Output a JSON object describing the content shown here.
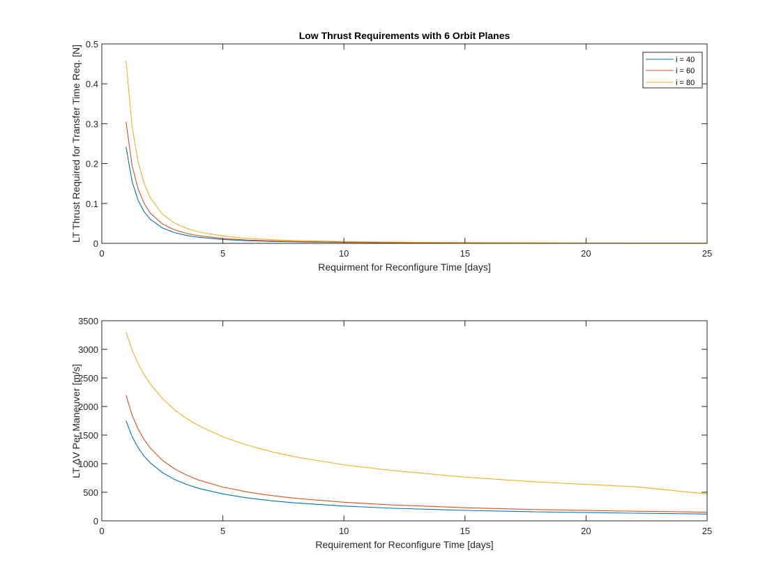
{
  "chart_data": [
    {
      "type": "line",
      "title": "Low Thrust Requirements with 6 Orbit Planes",
      "xlabel": "Requirment for Reconfigure Time [days]",
      "ylabel": "LT Thrust Required for Transfer Time Req. [N]",
      "xlim": [
        0,
        25
      ],
      "ylim": [
        0,
        0.5
      ],
      "xticks": [
        0,
        5,
        10,
        15,
        20,
        25
      ],
      "yticks": [
        0,
        0.1,
        0.2,
        0.3,
        0.4,
        0.5
      ],
      "xtick_labels": [
        "0",
        "5",
        "10",
        "15",
        "20",
        "25"
      ],
      "ytick_labels": [
        "0",
        "0.1",
        "0.2",
        "0.3",
        "0.4",
        "0.5"
      ],
      "grid": false,
      "legend": {
        "position": "top-right",
        "entries": [
          "i = 40",
          "i = 60",
          "i = 80"
        ]
      },
      "x": [
        1,
        1.25,
        1.5,
        1.75,
        2,
        2.5,
        3,
        3.5,
        4,
        5,
        6,
        7,
        8,
        10,
        12,
        15,
        18,
        20,
        22,
        25
      ],
      "series": [
        {
          "name": "i = 40",
          "color": "#0072BD",
          "values": [
            0.242,
            0.155,
            0.108,
            0.079,
            0.0605,
            0.0387,
            0.0269,
            0.0198,
            0.0151,
            0.0097,
            0.0067,
            0.0049,
            0.0038,
            0.0024,
            0.0017,
            0.0011,
            0.0007,
            0.0006,
            0.0005,
            0.0004
          ]
        },
        {
          "name": "i = 60",
          "color": "#D95319",
          "values": [
            0.305,
            0.195,
            0.136,
            0.1,
            0.076,
            0.0488,
            0.0339,
            0.0249,
            0.0191,
            0.0122,
            0.0085,
            0.0062,
            0.0048,
            0.0031,
            0.0021,
            0.0014,
            0.0009,
            0.0008,
            0.0006,
            0.0005
          ]
        },
        {
          "name": "i = 80",
          "color": "#EDB120",
          "values": [
            0.458,
            0.293,
            0.204,
            0.15,
            0.1145,
            0.0733,
            0.0509,
            0.0374,
            0.0286,
            0.0183,
            0.0127,
            0.0093,
            0.0072,
            0.0046,
            0.0032,
            0.002,
            0.0014,
            0.0011,
            0.0009,
            0.0007
          ]
        }
      ]
    },
    {
      "type": "line",
      "title": "",
      "xlabel": "Requirement for Reconfigure Time [days]",
      "ylabel": "LT ΔV Per Maneuver [m/s]",
      "xlim": [
        0,
        25
      ],
      "ylim": [
        0,
        3500
      ],
      "xticks": [
        0,
        5,
        10,
        15,
        20,
        25
      ],
      "yticks": [
        0,
        500,
        1000,
        1500,
        2000,
        2500,
        3000,
        3500
      ],
      "xtick_labels": [
        "0",
        "5",
        "10",
        "15",
        "20",
        "25"
      ],
      "ytick_labels": [
        "0",
        "500",
        "1000",
        "1500",
        "2000",
        "2500",
        "3000",
        "3500"
      ],
      "grid": false,
      "x": [
        1,
        1.25,
        1.5,
        1.75,
        2,
        2.5,
        3,
        3.5,
        4,
        5,
        6,
        7,
        8,
        10,
        12,
        15,
        18,
        20,
        22,
        25
      ],
      "series": [
        {
          "color": "#0072BD",
          "values": [
            1750,
            1475,
            1280,
            1130,
            1015,
            845,
            725,
            637,
            568,
            470,
            402,
            352,
            313,
            258,
            221,
            183,
            157,
            145,
            134,
            120
          ]
        },
        {
          "color": "#D95319",
          "values": [
            2200,
            1850,
            1605,
            1420,
            1275,
            1060,
            910,
            800,
            714,
            590,
            505,
            443,
            394,
            325,
            278,
            230,
            197,
            182,
            168,
            152
          ]
        },
        {
          "color": "#EDB120",
          "values": [
            3300,
            2990,
            2750,
            2555,
            2395,
            2140,
            1945,
            1790,
            1665,
            1470,
            1325,
            1210,
            1118,
            980,
            880,
            765,
            680,
            637,
            598,
            470
          ]
        }
      ]
    }
  ]
}
